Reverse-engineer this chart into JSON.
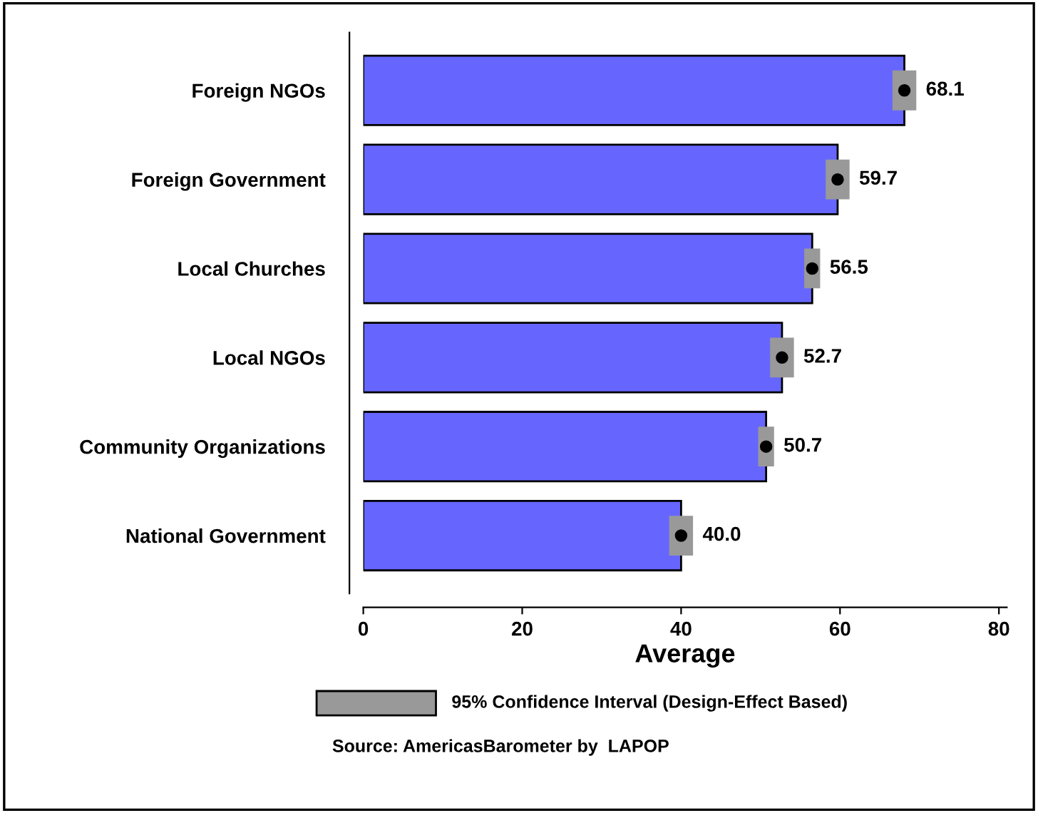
{
  "chart_data": {
    "type": "bar",
    "orientation": "horizontal",
    "xlabel": "Average",
    "categories": [
      "Foreign NGOs",
      "Foreign Government",
      "Local Churches",
      "Local NGOs",
      "Community Organizations",
      "National Government"
    ],
    "series": [
      {
        "color": "#6666ff",
        "values": [
          68.1,
          59.7,
          56.5,
          52.7,
          50.7,
          40.0
        ],
        "errors": [
          1.5,
          1.5,
          1,
          1.5,
          1,
          1.5
        ],
        "data_labels": true,
        "value_labels": [
          "68.1",
          "59.7",
          "56.5",
          "52.7",
          "50.7",
          "40.0"
        ]
      },
      {
        "type": "scatter",
        "color": "#000000",
        "marker": "circle",
        "values": [
          68.1,
          59.7,
          56.5,
          52.7,
          50.7,
          40.0
        ]
      }
    ],
    "xlim": [
      0,
      81
    ],
    "xticks": [
      0,
      20,
      40,
      60,
      80
    ],
    "grid": false,
    "annotations": [
      "95% Confidence Interval (Design-Effect Based)",
      "Source: AmericasBarometer by  LAPOP"
    ]
  }
}
